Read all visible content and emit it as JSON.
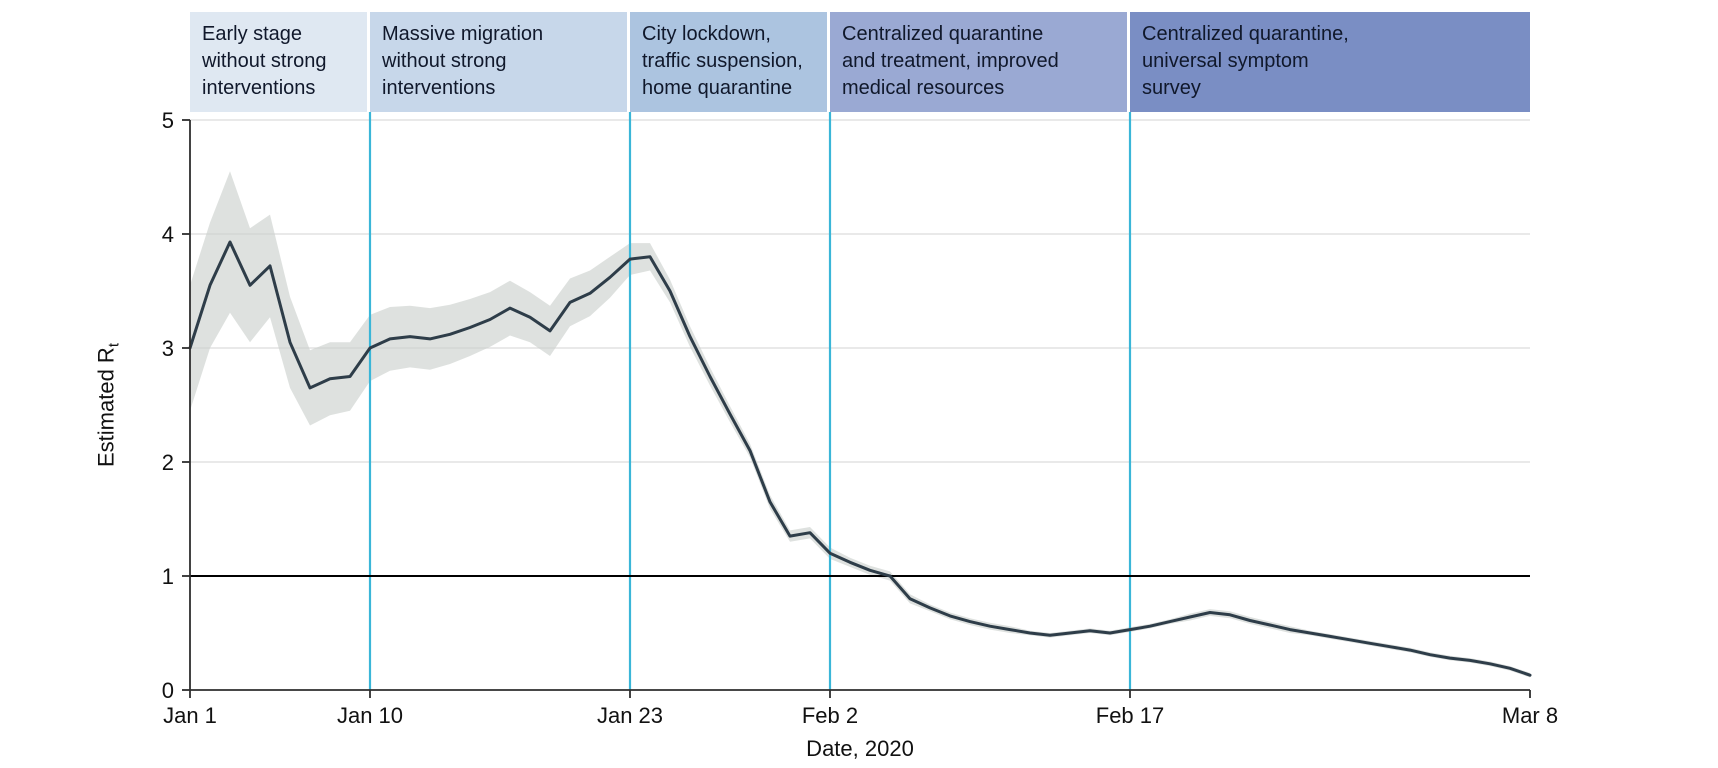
{
  "chart_data": {
    "type": "line",
    "title": "",
    "xlabel": "Date, 2020",
    "ylabel": "Estimated R",
    "ylabel_sub": "t",
    "ylim": [
      0,
      5
    ],
    "yticks": [
      0,
      1,
      2,
      3,
      4,
      5
    ],
    "reference_line_y": 1,
    "grid": true,
    "x_tick_labels": [
      {
        "day": 0,
        "label": "Jan 1"
      },
      {
        "day": 9,
        "label": "Jan 10"
      },
      {
        "day": 22,
        "label": "Jan 23"
      },
      {
        "day": 32,
        "label": "Feb 2"
      },
      {
        "day": 47,
        "label": "Feb 17"
      },
      {
        "day": 67,
        "label": "Mar 8"
      }
    ],
    "divider_days": [
      9,
      22,
      32,
      47
    ],
    "periods": [
      {
        "label": "Early stage\nwithout strong\ninterventions",
        "start_day": 0,
        "end_day": 9,
        "color": "#dfe8f2"
      },
      {
        "label": "Massive migration\nwithout strong\ninterventions",
        "start_day": 9,
        "end_day": 22,
        "color": "#c7d7ea"
      },
      {
        "label": "City lockdown,\ntraffic suspension,\nhome quarantine",
        "start_day": 22,
        "end_day": 32,
        "color": "#acc4e0"
      },
      {
        "label": "Centralized quarantine\nand treatment, improved\nmedical resources",
        "start_day": 32,
        "end_day": 47,
        "color": "#9aa9d3"
      },
      {
        "label": "Centralized quarantine,\nuniversal symptom\nsurvey",
        "start_day": 47,
        "end_day": 67,
        "color": "#7a8ec4"
      }
    ],
    "dates": [
      "Jan 1",
      "Jan 2",
      "Jan 3",
      "Jan 4",
      "Jan 5",
      "Jan 6",
      "Jan 7",
      "Jan 8",
      "Jan 9",
      "Jan 10",
      "Jan 11",
      "Jan 12",
      "Jan 13",
      "Jan 14",
      "Jan 15",
      "Jan 16",
      "Jan 17",
      "Jan 18",
      "Jan 19",
      "Jan 20",
      "Jan 21",
      "Jan 22",
      "Jan 23",
      "Jan 24",
      "Jan 25",
      "Jan 26",
      "Jan 27",
      "Jan 28",
      "Jan 29",
      "Jan 30",
      "Jan 31",
      "Feb 1",
      "Feb 2",
      "Feb 3",
      "Feb 4",
      "Feb 5",
      "Feb 6",
      "Feb 7",
      "Feb 8",
      "Feb 9",
      "Feb 10",
      "Feb 11",
      "Feb 12",
      "Feb 13",
      "Feb 14",
      "Feb 15",
      "Feb 16",
      "Feb 17",
      "Feb 18",
      "Feb 19",
      "Feb 20",
      "Feb 21",
      "Feb 22",
      "Feb 23",
      "Feb 24",
      "Feb 25",
      "Feb 26",
      "Feb 27",
      "Feb 28",
      "Feb 29",
      "Mar 1",
      "Mar 2",
      "Mar 3",
      "Mar 4",
      "Mar 5",
      "Mar 6",
      "Mar 7",
      "Mar 8"
    ],
    "series": [
      {
        "name": "Estimated Rt (mean)",
        "values": [
          3.0,
          3.55,
          3.93,
          3.55,
          3.72,
          3.05,
          2.65,
          2.73,
          2.75,
          3.0,
          3.08,
          3.1,
          3.08,
          3.12,
          3.18,
          3.25,
          3.35,
          3.27,
          3.15,
          3.4,
          3.48,
          3.62,
          3.78,
          3.8,
          3.5,
          3.1,
          2.75,
          2.42,
          2.1,
          1.65,
          1.35,
          1.38,
          1.2,
          1.12,
          1.05,
          1.0,
          0.8,
          0.72,
          0.65,
          0.6,
          0.56,
          0.53,
          0.5,
          0.48,
          0.5,
          0.52,
          0.5,
          0.53,
          0.56,
          0.6,
          0.64,
          0.68,
          0.66,
          0.61,
          0.57,
          0.53,
          0.5,
          0.47,
          0.44,
          0.41,
          0.38,
          0.35,
          0.31,
          0.28,
          0.26,
          0.23,
          0.19,
          0.13
        ]
      }
    ],
    "ci_lower": [
      2.45,
      3.0,
      3.31,
      3.05,
      3.27,
      2.65,
      2.32,
      2.41,
      2.45,
      2.71,
      2.8,
      2.83,
      2.81,
      2.86,
      2.93,
      3.01,
      3.11,
      3.05,
      2.93,
      3.19,
      3.28,
      3.44,
      3.64,
      3.68,
      3.4,
      3.01,
      2.67,
      2.35,
      2.04,
      1.59,
      1.3,
      1.33,
      1.15,
      1.08,
      1.01,
      0.96,
      0.76,
      0.69,
      0.62,
      0.57,
      0.53,
      0.5,
      0.48,
      0.46,
      0.48,
      0.5,
      0.48,
      0.51,
      0.54,
      0.58,
      0.61,
      0.65,
      0.63,
      0.58,
      0.54,
      0.5,
      0.48,
      0.45,
      0.42,
      0.39,
      0.36,
      0.33,
      0.29,
      0.26,
      0.24,
      0.21,
      0.17,
      0.11
    ],
    "ci_upper": [
      3.55,
      4.1,
      4.55,
      4.05,
      4.17,
      3.45,
      2.98,
      3.05,
      3.05,
      3.29,
      3.36,
      3.37,
      3.35,
      3.38,
      3.43,
      3.49,
      3.59,
      3.49,
      3.37,
      3.61,
      3.68,
      3.8,
      3.92,
      3.92,
      3.6,
      3.19,
      2.83,
      2.49,
      2.16,
      1.71,
      1.4,
      1.43,
      1.25,
      1.16,
      1.09,
      1.04,
      0.84,
      0.75,
      0.68,
      0.63,
      0.59,
      0.56,
      0.52,
      0.5,
      0.52,
      0.54,
      0.52,
      0.55,
      0.58,
      0.62,
      0.67,
      0.71,
      0.69,
      0.64,
      0.6,
      0.56,
      0.52,
      0.49,
      0.46,
      0.43,
      0.4,
      0.37,
      0.33,
      0.3,
      0.28,
      0.25,
      0.21,
      0.15
    ],
    "colors": {
      "line": "#2e3d49",
      "ci_band": "#c9cecb",
      "divider": "#3ab6d8",
      "reference": "#000000",
      "grid": "#dcdcdc",
      "axis": "#2e2e2e",
      "text": "#111111"
    }
  }
}
